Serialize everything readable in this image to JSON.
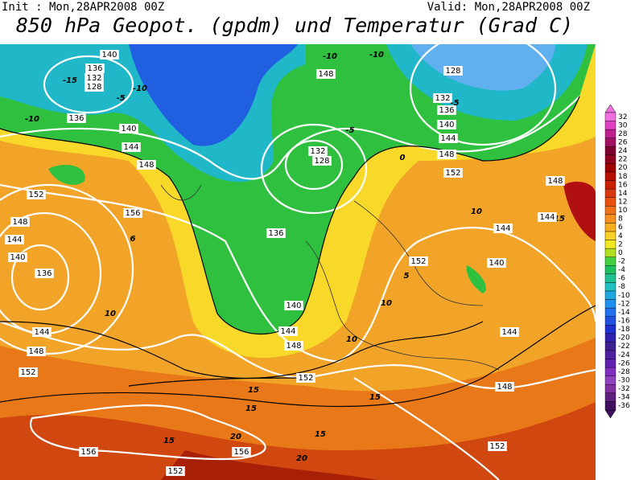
{
  "header": {
    "init": "Init : Mon,28APR2008 00Z",
    "valid": "Valid: Mon,28APR2008 00Z",
    "title": "850 hPa Geopot. (gpdm) und Temperatur (Grad C)"
  },
  "colorbar": {
    "labels": [
      "32",
      "30",
      "28",
      "26",
      "24",
      "22",
      "20",
      "18",
      "16",
      "14",
      "12",
      "10",
      "8",
      "6",
      "4",
      "2",
      "0",
      "-2",
      "-4",
      "-6",
      "-8",
      "-10",
      "-12",
      "-14",
      "-16",
      "-18",
      "-20",
      "-22",
      "-24",
      "-26",
      "-28",
      "-30",
      "-32",
      "-34",
      "-36"
    ]
  },
  "map": {
    "contour_labels": [
      "140",
      "136",
      "132",
      "128",
      "-15",
      "-10",
      "-5",
      "136",
      "-10",
      "140",
      "144",
      "148",
      "152",
      "156",
      "148",
      "144",
      "140",
      "136",
      "6",
      "10",
      "144",
      "148",
      "152",
      "132",
      "128",
      "136",
      "140",
      "144",
      "148",
      "152",
      "15",
      "20",
      "156",
      "156",
      "15",
      "152",
      "20",
      "-10",
      "-10",
      "148",
      "128",
      "132",
      "136",
      "140",
      "144",
      "148",
      "152",
      "-5",
      "0",
      "-5",
      "152",
      "140",
      "144",
      "144",
      "148",
      "152",
      "10",
      "5",
      "15",
      "15",
      "15",
      "10",
      "148",
      "15",
      "144",
      "10"
    ]
  }
}
